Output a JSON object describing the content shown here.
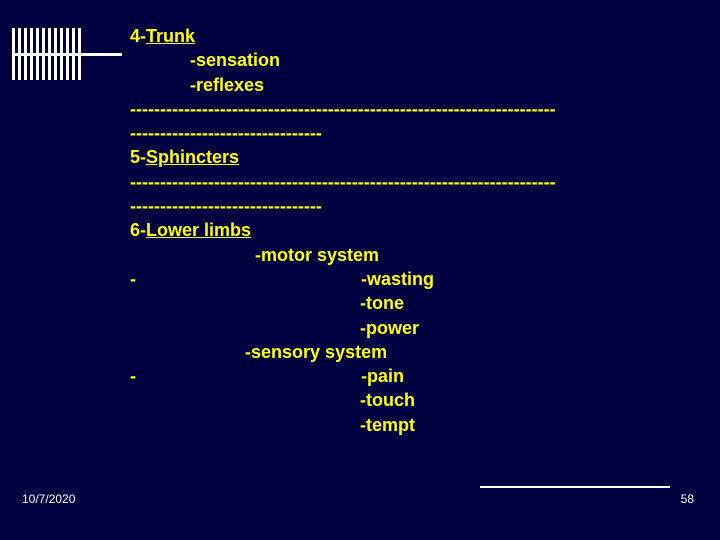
{
  "colors": {
    "background": "#000040",
    "text": "#ffff00",
    "decor": "#ffffff",
    "footer_text": "#ffffff"
  },
  "typography": {
    "body_font": "Arial, sans-serif",
    "body_fontsize_pt": 14,
    "body_fontweight": "bold",
    "footer_fontsize_pt": 9
  },
  "lines": {
    "l0": {
      "prefix": "4-",
      "underlined": "Trunk"
    },
    "l1": "            -sensation",
    "l2": "            -reflexes",
    "l3": "-----------------------------------------------------------------------",
    "l4": "--------------------------------",
    "l5": {
      "prefix": "5-",
      "underlined": "Sphincters"
    },
    "l6": "-----------------------------------------------------------------------",
    "l7": "--------------------------------",
    "l8": {
      "prefix": "6-",
      "underlined": "Lower limbs"
    },
    "l9": "                         -motor system",
    "l10": "-                                             -wasting",
    "l11": "                                              -tone",
    "l12": "                                              -power",
    "l13": "                       -sensory system",
    "l14": "-                                             -pain",
    "l15": "                                              -touch",
    "l16": "                                              -tempt"
  },
  "footer": {
    "date": "10/7/2020",
    "page": "58"
  }
}
